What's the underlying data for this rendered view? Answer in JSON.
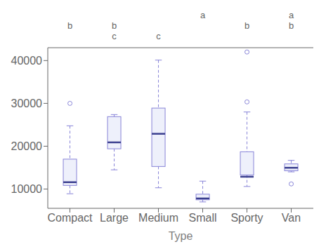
{
  "chart_data": {
    "type": "box",
    "categories": [
      "Compact",
      "Large",
      "Medium",
      "Small",
      "Sporty",
      "Van"
    ],
    "values": [
      {
        "whislo": 8895,
        "q1": 10850,
        "med": 11600,
        "q3": 16980,
        "whishi": 24760,
        "fliers": [
          30000
        ]
      },
      {
        "whislo": 14490,
        "q1": 19400,
        "med": 20900,
        "q3": 26900,
        "whishi": 27385,
        "fliers": []
      },
      {
        "whislo": 10295,
        "q1": 15267,
        "med": 22900,
        "q3": 28900,
        "whishi": 40100,
        "fliers": []
      },
      {
        "whislo": 6995,
        "q1": 7495,
        "med": 7805,
        "q3": 8800,
        "whishi": 11845,
        "fliers": []
      },
      {
        "whislo": 10595,
        "q1": 13280,
        "med": 12875,
        "q3": 18700,
        "whishi": 27990,
        "fliers": [
          30345,
          41995
        ]
      },
      {
        "whislo": 14010,
        "q1": 14270,
        "med": 14965,
        "q3": 15870,
        "whishi": 16695,
        "fliers": [
          11195
        ]
      }
    ],
    "annotations": [
      [
        null,
        null,
        null,
        "a",
        null,
        "a"
      ],
      [
        "b",
        "b",
        null,
        null,
        "b",
        "b"
      ],
      [
        null,
        "c",
        "c",
        null,
        null,
        null
      ]
    ],
    "xlabel": "Type",
    "ylim": [
      5500,
      43000
    ],
    "yticks": [
      10000,
      20000,
      30000,
      40000
    ],
    "grid": false
  }
}
